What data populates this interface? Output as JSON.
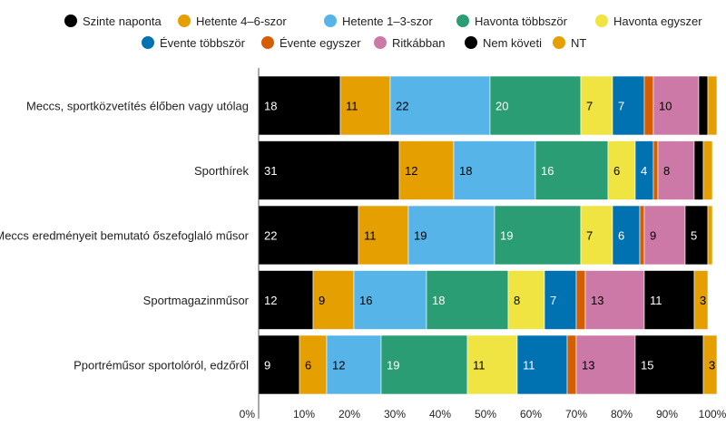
{
  "chart_data": {
    "type": "bar",
    "orientation": "horizontal",
    "stacked": true,
    "title": "",
    "xlabel": "",
    "ylabel": "",
    "xlim": [
      0,
      100
    ],
    "legend_position": "top",
    "grid": false,
    "x_ticks": [
      "0%",
      "10%",
      "20%",
      "30%",
      "40%",
      "50%",
      "60%",
      "70%",
      "80%",
      "90%",
      "100%"
    ],
    "categories": [
      "Meccs, sportközvetítés élőben vagy utólag",
      "Sporthírek",
      "Meccs eredményeit bemutató őszefoglaló műsor",
      "Sportmagazinműsor",
      "Pportréműsor sportolóról, edzőről"
    ],
    "series": [
      {
        "name": "Szinte naponta",
        "color": "#000000",
        "label_color": "#ffffff",
        "values": [
          18,
          31,
          22,
          12,
          9
        ]
      },
      {
        "name": "Hetente 4–6-szor",
        "color": "#E69F00",
        "label_color": "#000000",
        "values": [
          11,
          12,
          11,
          9,
          6
        ]
      },
      {
        "name": "Hetente 1–3-szor",
        "color": "#56B4E9",
        "label_color": "#000000",
        "values": [
          22,
          18,
          19,
          16,
          12
        ]
      },
      {
        "name": "Havonta többször",
        "color": "#2A9D74",
        "label_color": "#ffffff",
        "values": [
          20,
          16,
          19,
          18,
          19
        ]
      },
      {
        "name": "Havonta egyszer",
        "color": "#F0E442",
        "label_color": "#000000",
        "values": [
          7,
          6,
          7,
          8,
          11
        ]
      },
      {
        "name": "Évente többször",
        "color": "#0072B2",
        "label_color": "#ffffff",
        "values": [
          7,
          4,
          6,
          7,
          11
        ]
      },
      {
        "name": "Évente egyszer",
        "color": "#D55E00",
        "label_color": "#000000",
        "values": [
          2,
          1,
          1,
          2,
          2
        ]
      },
      {
        "name": "Ritkábban",
        "color": "#CC79A7",
        "label_color": "#000000",
        "values": [
          10,
          8,
          9,
          13,
          13
        ]
      },
      {
        "name": "Nem követi",
        "color": "#000000",
        "label_color": "#ffffff",
        "values": [
          2,
          2,
          5,
          11,
          15
        ]
      },
      {
        "name": "NT",
        "color": "#E69F00",
        "label_color": "#000000",
        "values": [
          2,
          2,
          1,
          3,
          3
        ]
      }
    ],
    "visible_label_min": 3
  }
}
